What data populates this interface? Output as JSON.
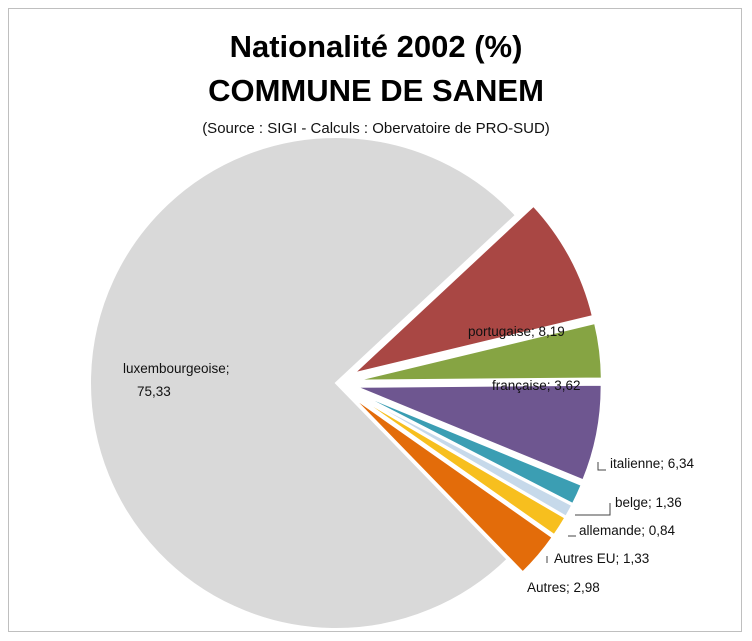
{
  "chart_data": {
    "type": "pie",
    "title": "Nationalité 2002 (%)",
    "subtitle": "COMMUNE DE SANEM",
    "source": "(Source : SIGI - Calculs : Obervatoire de PRO-SUD)",
    "categories": [
      "portugaise",
      "française",
      "italienne",
      "belge",
      "allemande",
      "Autres EU",
      "Autres",
      "luxembourgeoise"
    ],
    "values": [
      8.19,
      3.62,
      6.34,
      1.36,
      0.84,
      1.33,
      2.98,
      75.33
    ],
    "labels": [
      "portugaise; 8,19",
      "française; 3,62",
      "italienne; 6,34",
      "belge; 1,36",
      "allemande; 0,84",
      "Autres EU; 1,33",
      "Autres; 2,98",
      "luxembourgeoise;",
      "75,33"
    ],
    "colors": [
      "#a94744",
      "#86a443",
      "#6e5690",
      "#3b9eb3",
      "#c6d9ea",
      "#f7bf1e",
      "#e36c0a",
      "#d9d9d9"
    ]
  }
}
